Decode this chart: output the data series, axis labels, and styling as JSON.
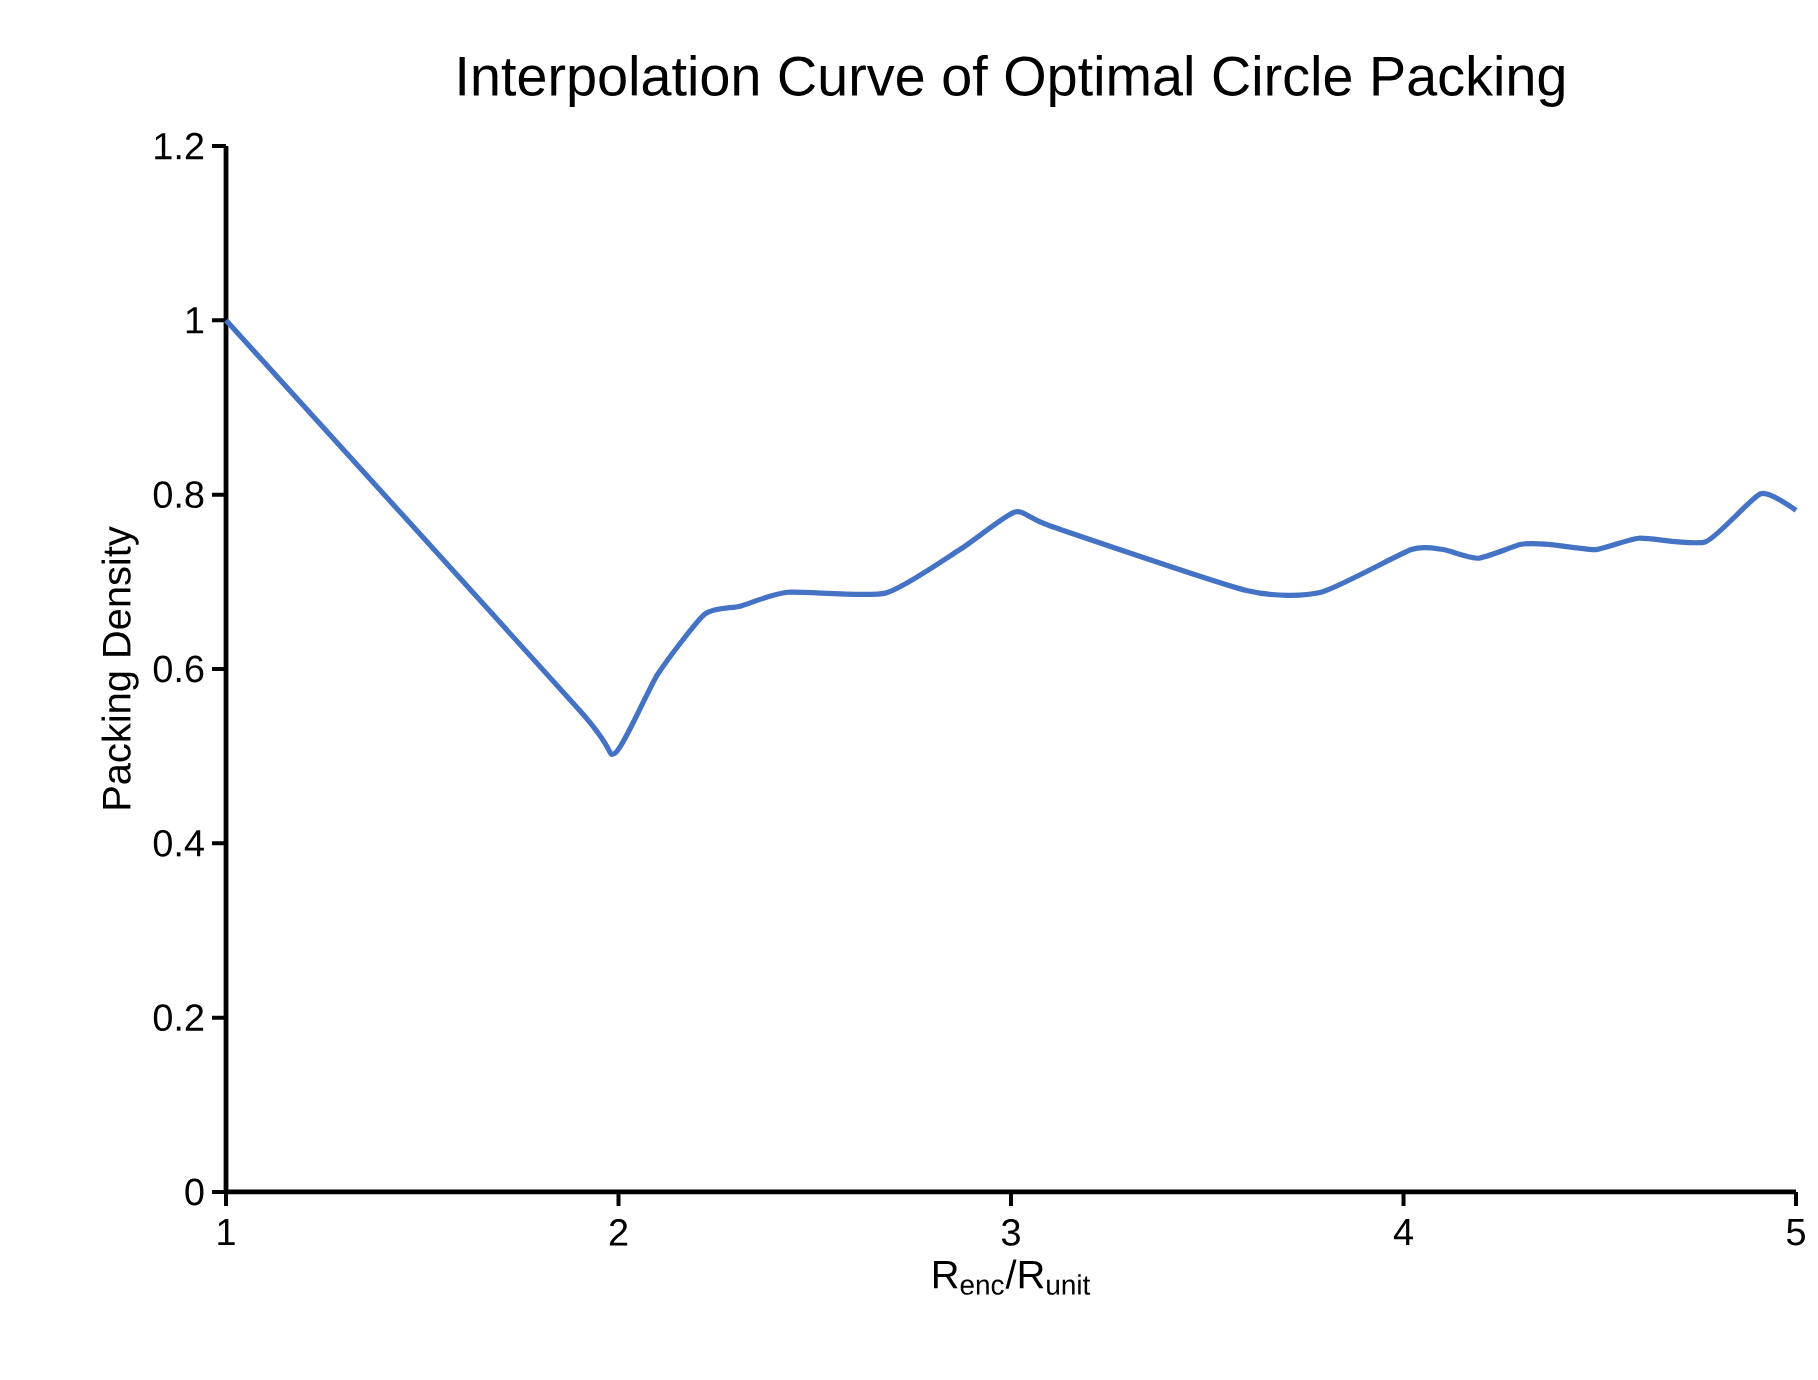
{
  "chart_data": {
    "type": "line",
    "title": "Interpolation Curve of Optimal Circle Packing",
    "xlabel": "R$_{enc}$/R$_{unit}$",
    "ylabel": "Packing Density",
    "xlim": [
      1,
      5
    ],
    "xticks": [
      1,
      2,
      3,
      4,
      5
    ],
    "ylim": [
      0,
      1.2
    ],
    "yticks": [
      0,
      0.2,
      0.4,
      0.6,
      0.8,
      1,
      1.2
    ],
    "grid": false,
    "marker": "none",
    "line_style": "solid",
    "series": [
      {
        "color": "#4472c4",
        "x": [
          1,
          1.9,
          1.99,
          2.1,
          2.22,
          2.31,
          2.43,
          2.68,
          2.87,
          3.01,
          3.1,
          3.6,
          3.79,
          4.02,
          4.1,
          4.19,
          4.3,
          4.37,
          4.49,
          4.6,
          4.77,
          4.91,
          5
        ],
        "values": [
          1.0,
          0.553,
          0.503,
          0.594,
          0.663,
          0.672,
          0.688,
          0.687,
          0.737,
          0.78,
          0.764,
          0.69,
          0.688,
          0.737,
          0.737,
          0.727,
          0.743,
          0.743,
          0.737,
          0.75,
          0.746,
          0.801,
          0.782
        ]
      }
    ]
  }
}
